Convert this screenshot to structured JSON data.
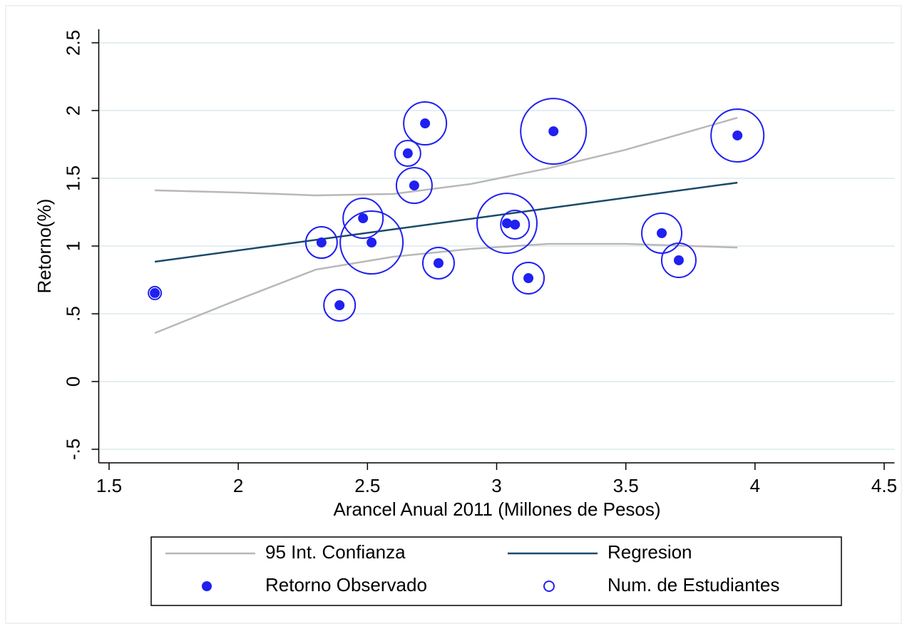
{
  "chart_data": {
    "type": "scatter",
    "x_label": "Arancel Anual 2011 (Millones de Pesos)",
    "y_label": "Retorno(%)",
    "xlim": [
      1.46,
      4.54
    ],
    "ylim": [
      -0.6,
      2.6
    ],
    "xticks": [
      1.5,
      2,
      2.5,
      3,
      3.5,
      4,
      4.5
    ],
    "yticks": [
      {
        "value": -0.5,
        "label": "-.5"
      },
      0,
      {
        "value": 0.5,
        "label": ".5"
      },
      1,
      1.5,
      2,
      2.5
    ],
    "grid": true,
    "series": [
      {
        "name": "95 Int. Confianza",
        "type": "ci",
        "color": "#b8b8b8",
        "x": [
          1.677,
          2.0,
          2.3,
          2.6,
          2.9,
          3.2,
          3.5,
          3.932
        ],
        "upper": [
          1.411,
          1.395,
          1.374,
          1.384,
          1.458,
          1.574,
          1.711,
          1.947
        ],
        "lower": [
          0.358,
          0.605,
          0.826,
          0.921,
          0.979,
          1.016,
          1.016,
          0.989
        ]
      },
      {
        "name": "Regresion",
        "type": "line",
        "color": "#1a4a6a",
        "x": [
          1.677,
          3.932
        ],
        "values": [
          0.884,
          1.468
        ]
      },
      {
        "name": "Retorno Observado",
        "type": "scatter",
        "color": "#2020f0",
        "x": [
          1.677,
          2.322,
          2.392,
          2.483,
          2.516,
          2.656,
          2.681,
          2.723,
          2.775,
          3.071,
          3.04,
          3.123,
          3.22,
          3.639,
          3.705,
          3.932
        ],
        "values": [
          0.653,
          1.026,
          0.563,
          1.205,
          1.026,
          1.684,
          1.447,
          1.905,
          0.874,
          1.158,
          1.168,
          0.763,
          1.847,
          1.095,
          0.895,
          1.816
        ]
      },
      {
        "name": "Num. de Estudiantes",
        "type": "bubble",
        "color": "#2020f0",
        "sizes": [
          81,
          484,
          484,
          784,
          1936,
          324,
          625,
          900,
          484,
          400,
          1764,
          484,
          2116,
          784,
          576,
          1369
        ]
      }
    ]
  }
}
